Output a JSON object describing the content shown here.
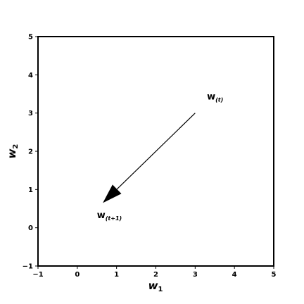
{
  "chart_data": {
    "type": "line",
    "title": "",
    "xlabel": "w",
    "xlabel_subscript": "1",
    "ylabel": "w",
    "ylabel_subscript": "2",
    "xlim": [
      -1,
      5
    ],
    "ylim": [
      -1,
      5
    ],
    "xticks": [
      -1,
      0,
      1,
      2,
      3,
      4,
      5
    ],
    "yticks": [
      -1,
      0,
      1,
      2,
      3,
      4,
      5
    ],
    "xtick_labels": [
      "−1",
      "0",
      "1",
      "2",
      "3",
      "4",
      "5"
    ],
    "ytick_labels": [
      "−1",
      "0",
      "1",
      "2",
      "3",
      "4",
      "5"
    ],
    "grid": false,
    "arrow": {
      "from": [
        3,
        3
      ],
      "to": [
        0.65,
        0.65
      ]
    },
    "annotations": [
      {
        "base": "w",
        "subscript": "(t)",
        "x": 3.3,
        "y": 3.35
      },
      {
        "base": "w",
        "subscript": "(t+1)",
        "x": 0.5,
        "y": 0.25
      }
    ]
  }
}
